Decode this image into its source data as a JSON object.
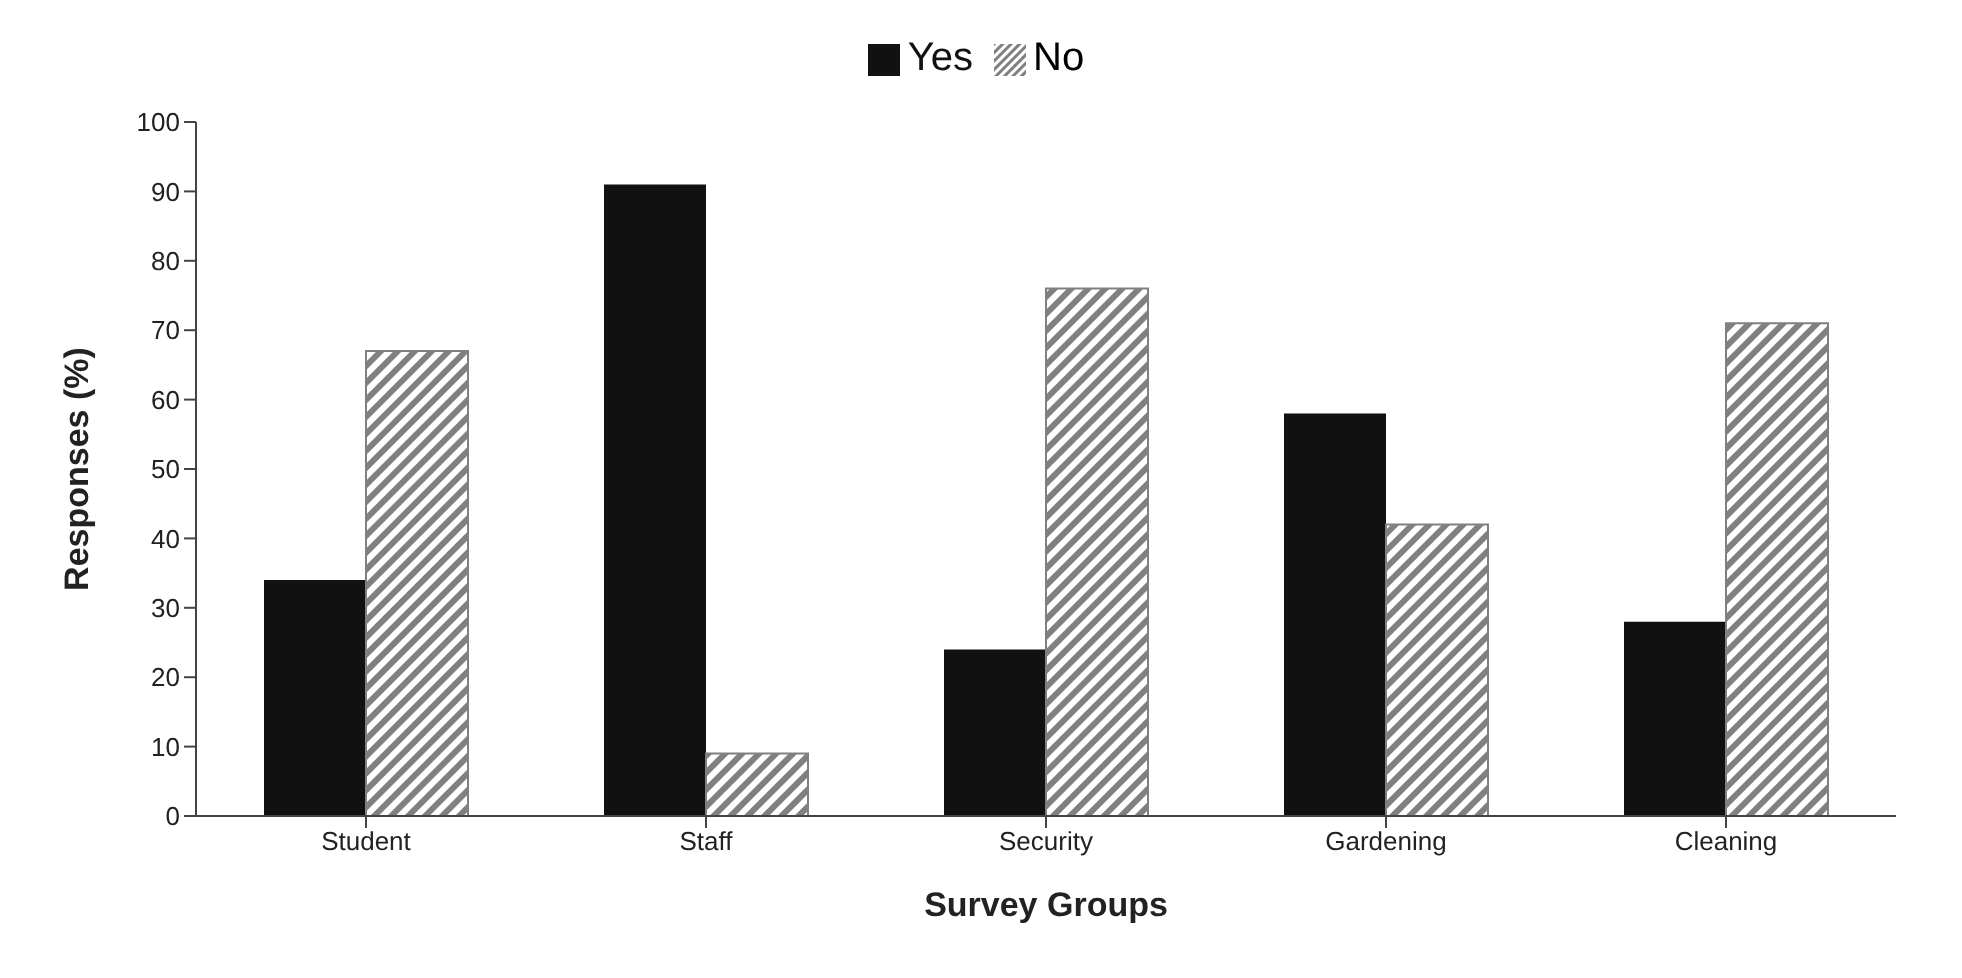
{
  "chart_data": {
    "type": "bar",
    "xlabel": "Survey Groups",
    "ylabel": "Responses (%)",
    "categories": [
      "Student",
      "Staff",
      "Security",
      "Gardening",
      "Cleaning"
    ],
    "series": [
      {
        "name": "Yes",
        "color": "#111111",
        "values": [
          34,
          91,
          24,
          58,
          28
        ]
      },
      {
        "name": "No",
        "color": "#808080",
        "values": [
          67,
          9,
          76,
          42,
          71
        ]
      }
    ],
    "ylim": [
      0,
      100
    ],
    "yticks": [
      0,
      10,
      20,
      30,
      40,
      50,
      60,
      70,
      80,
      90,
      100
    ],
    "grid": false,
    "legend": "top"
  }
}
